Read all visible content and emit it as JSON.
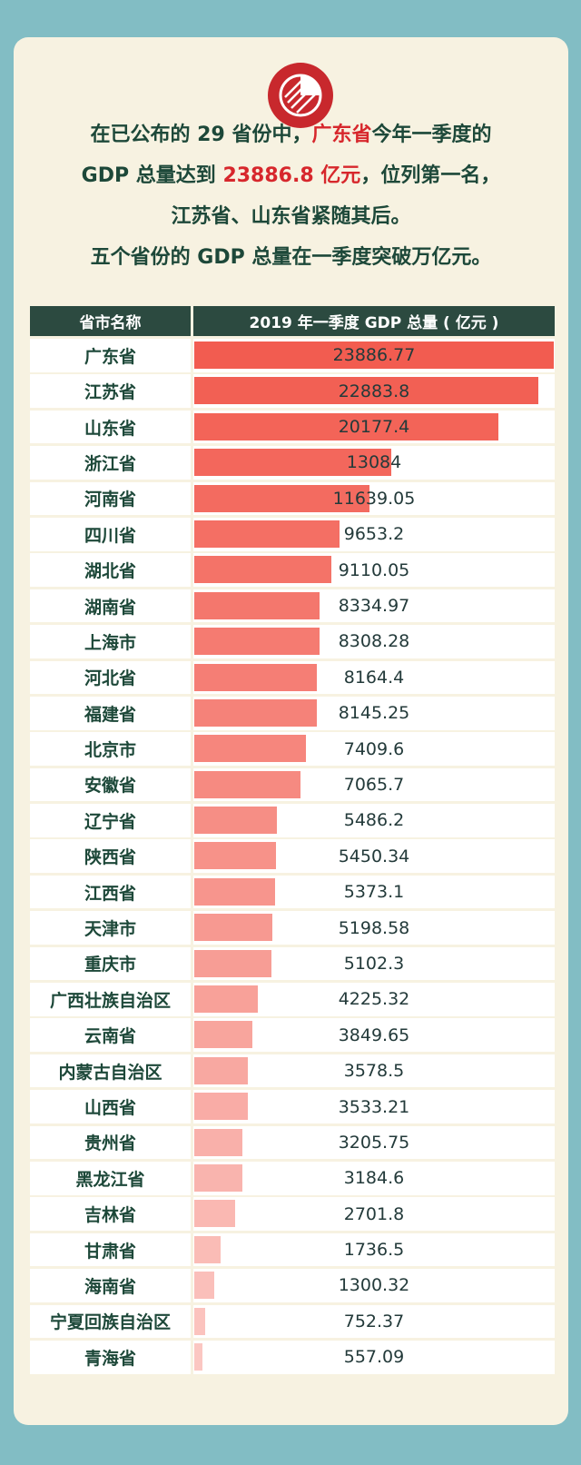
{
  "headline": {
    "line1_pre": "在已公布的 29 省份中，",
    "line1_hl": "广东省",
    "line1_post": "今年一季度的",
    "line2_pre": "GDP 总量达到 ",
    "line2_hl": "23886.8 亿元",
    "line2_post": "，位列第一名，",
    "line3": "江苏省、山东省紧随其后。",
    "line4": "五个省份的 GDP 总量在一季度突破万亿元。"
  },
  "logo_icon": "pie-chart-icon",
  "colors": {
    "background": "#82bdc4",
    "card": "#f7f2e1",
    "header": "#2c4a40",
    "highlight": "#d7272c",
    "bar_strong": "#f25c50",
    "bar_light": "#fbc7c2"
  },
  "chart_data": {
    "type": "bar",
    "header_name": "省市名称",
    "header_value": "2019 年一季度 GDP 总量 ( 亿元 )",
    "categories": [
      "广东省",
      "江苏省",
      "山东省",
      "浙江省",
      "河南省",
      "四川省",
      "湖北省",
      "湖南省",
      "上海市",
      "河北省",
      "福建省",
      "北京市",
      "安徽省",
      "辽宁省",
      "陕西省",
      "江西省",
      "天津市",
      "重庆市",
      "广西壮族自治区",
      "云南省",
      "内蒙古自治区",
      "山西省",
      "贵州省",
      "黑龙江省",
      "吉林省",
      "甘肃省",
      "海南省",
      "宁夏回族自治区",
      "青海省"
    ],
    "values": [
      23886.77,
      22883.8,
      20177.4,
      13084,
      11639.05,
      9653.2,
      9110.05,
      8334.97,
      8308.28,
      8164.4,
      8145.25,
      7409.6,
      7065.7,
      5486.2,
      5450.34,
      5373.1,
      5198.58,
      5102.3,
      4225.32,
      3849.65,
      3578.5,
      3533.21,
      3205.75,
      3184.6,
      2701.8,
      1736.5,
      1300.32,
      752.37,
      557.09
    ],
    "labels": [
      "23886.77",
      "22883.8",
      "20177.4",
      "13084",
      "11639.05",
      "9653.2",
      "9110.05",
      "8334.97",
      "8308.28",
      "8164.4",
      "8145.25",
      "7409.6",
      "7065.7",
      "5486.2",
      "5450.34",
      "5373.1",
      "5198.58",
      "5102.3",
      "4225.32",
      "3849.65",
      "3578.5",
      "3533.21",
      "3205.75",
      "3184.6",
      "2701.8",
      "1736.5",
      "1300.32",
      "752.37",
      "557.09"
    ],
    "xlim": [
      0,
      23886.77
    ]
  }
}
